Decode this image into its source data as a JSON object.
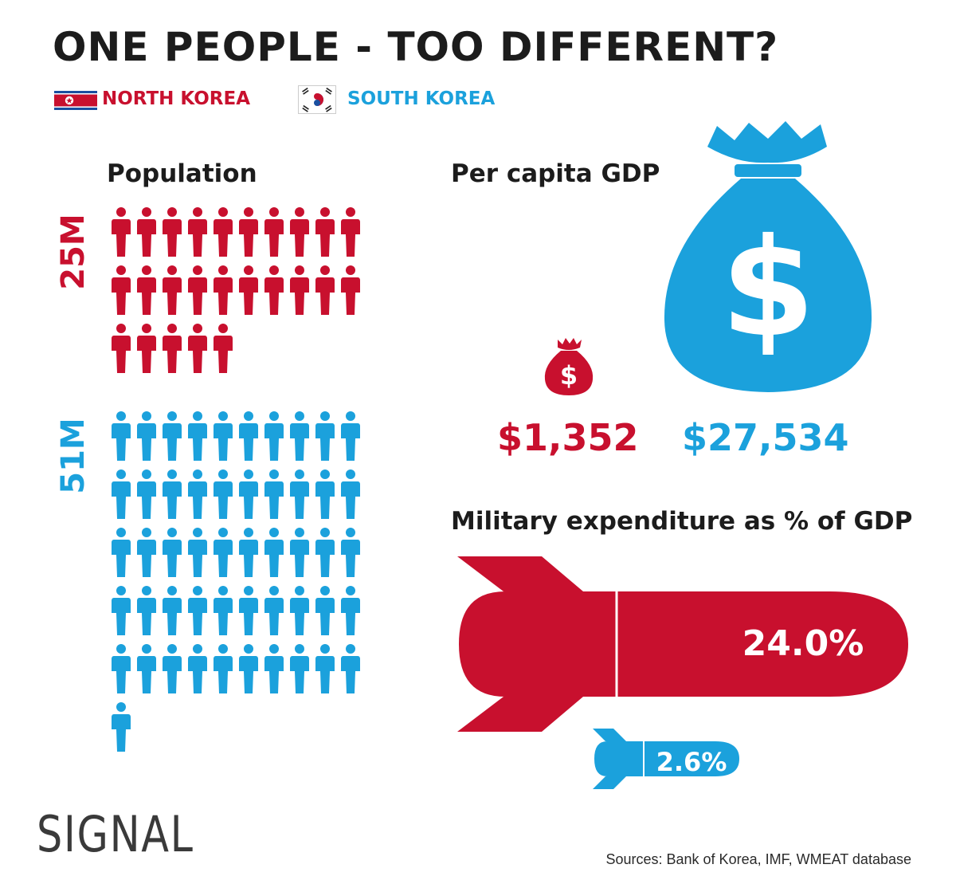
{
  "title": "ONE PEOPLE - TOO DIFFERENT?",
  "legend": {
    "north": {
      "label": "NORTH KOREA",
      "color": "#c8102e",
      "flag_icon": "north-korea-flag-icon"
    },
    "south": {
      "label": "SOUTH KOREA",
      "color": "#1ba1dc",
      "flag_icon": "south-korea-flag-icon"
    }
  },
  "sections": {
    "population": "Population",
    "gdp": "Per capita GDP",
    "military": "Military expenditure as % of GDP"
  },
  "chart_data": [
    {
      "type": "pictograph",
      "title": "Population",
      "icon": "person-icon",
      "units_per_icon_millions": 1,
      "series": [
        {
          "name": "NORTH KOREA",
          "label": "25M",
          "value": 25,
          "color": "#c8102e"
        },
        {
          "name": "SOUTH KOREA",
          "label": "51M",
          "value": 51,
          "color": "#1ba1dc"
        }
      ]
    },
    {
      "type": "pictograph",
      "title": "Per capita GDP",
      "icon": "money-bag-icon",
      "series": [
        {
          "name": "NORTH KOREA",
          "label": "$1,352",
          "value": 1352,
          "color": "#c8102e"
        },
        {
          "name": "SOUTH KOREA",
          "label": "$27,534",
          "value": 27534,
          "color": "#1ba1dc"
        }
      ]
    },
    {
      "type": "bar",
      "title": "Military expenditure as % of GDP",
      "icon": "missile-icon",
      "series": [
        {
          "name": "NORTH KOREA",
          "label": "24.0%",
          "value": 24.0,
          "color": "#c8102e"
        },
        {
          "name": "SOUTH KOREA",
          "label": "2.6%",
          "value": 2.6,
          "color": "#1ba1dc"
        }
      ]
    }
  ],
  "brand": "SIGNAL",
  "sources": "Sources: Bank of Korea, IMF, WMEAT database"
}
